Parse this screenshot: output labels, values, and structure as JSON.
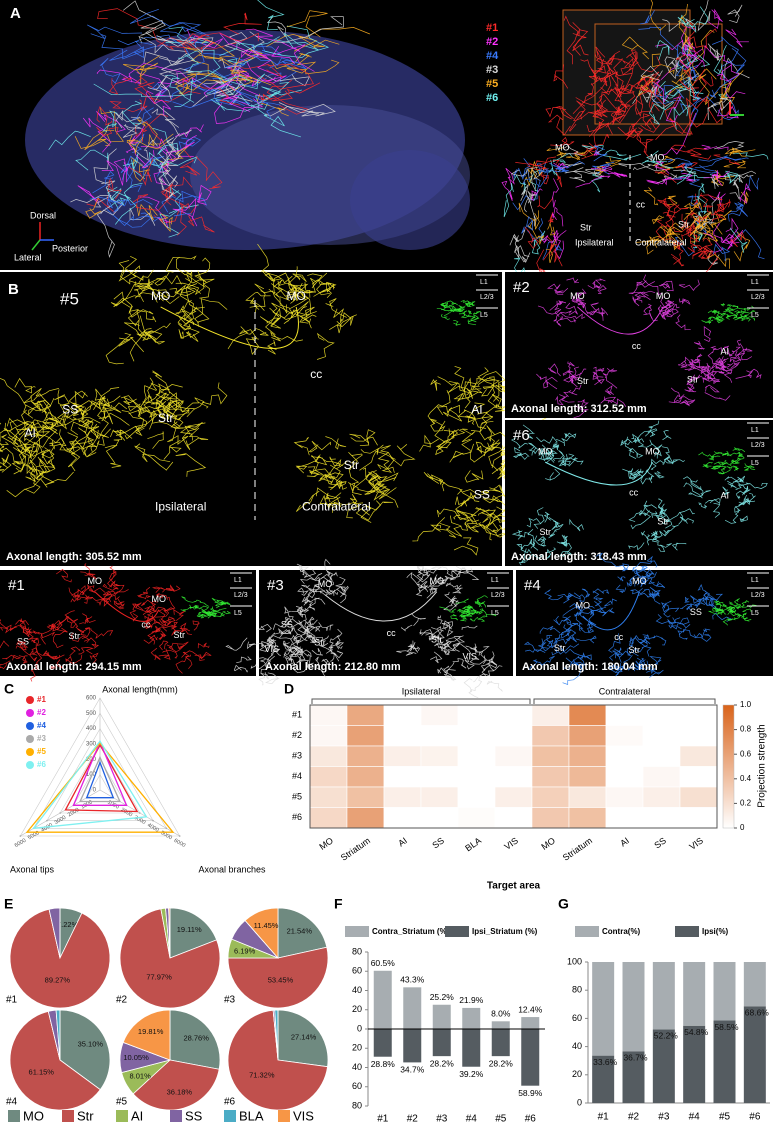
{
  "panel_a": {
    "label": "A",
    "legend": [
      {
        "name": "#1",
        "color": "#ff2a2a"
      },
      {
        "name": "#2",
        "color": "#ff33ff"
      },
      {
        "name": "#4",
        "color": "#3a7bff"
      },
      {
        "name": "#3",
        "color": "#d8d8d8"
      },
      {
        "name": "#5",
        "color": "#ffb020"
      },
      {
        "name": "#6",
        "color": "#70f0f0"
      }
    ],
    "axis_labels": [
      "Dorsal",
      "Posterior",
      "Lateral"
    ],
    "region_labels": [
      "MO",
      "MO",
      "cc",
      "Str",
      "Str",
      "Ipsilateral",
      "Contralateral"
    ]
  },
  "panel_b": {
    "label": "B",
    "layer_labels": [
      "L1",
      "L2/3",
      "L5"
    ],
    "neurons": [
      {
        "id": "#5",
        "color": "#f2e32a",
        "length_label": "Axonal length: 305.52 mm",
        "region_labels": [
          "MO",
          "MO",
          "cc",
          "SS",
          "AI",
          "Str",
          "Str",
          "AI",
          "SS",
          "Ipsilateral",
          "Contralateral"
        ]
      },
      {
        "id": "#2",
        "color": "#e040e0",
        "length_label": "Axonal length: 312.52 mm",
        "region_labels": [
          "MO",
          "MO",
          "cc",
          "AI",
          "Str",
          "Str"
        ]
      },
      {
        "id": "#6",
        "color": "#7fe8e8",
        "length_label": "Axonal length: 318.43 mm",
        "region_labels": [
          "MO",
          "MO",
          "cc",
          "AI",
          "Str",
          "Str"
        ]
      },
      {
        "id": "#1",
        "color": "#ee2222",
        "length_label": "Axonal length: 294.15 mm",
        "region_labels": [
          "MO",
          "MO",
          "cc",
          "SS",
          "Str",
          "Str"
        ]
      },
      {
        "id": "#3",
        "color": "#dddddd",
        "length_label": "Axonal length: 212.80 mm",
        "region_labels": [
          "MO",
          "MO",
          "cc",
          "SS",
          "Str",
          "Str",
          "VIS",
          "VIS"
        ]
      },
      {
        "id": "#4",
        "color": "#2f7fef",
        "length_label": "Axonal length: 180.04 mm",
        "region_labels": [
          "MO",
          "MO",
          "cc",
          "SS",
          "Str",
          "Str"
        ]
      }
    ]
  },
  "chart_data": [
    {
      "type": "radar",
      "panel": "C",
      "axes": [
        {
          "name": "Axonal length(mm)",
          "lim": [
            0,
            600
          ],
          "ticks": [
            0,
            100,
            200,
            300,
            400,
            500,
            600
          ]
        },
        {
          "name": "Axonal branches",
          "lim": [
            0,
            6000
          ],
          "ticks": [
            1000,
            2000,
            3000,
            4000,
            5000,
            6000
          ]
        },
        {
          "name": "Axonal tips",
          "lim": [
            0,
            6000
          ],
          "ticks": [
            1000,
            2000,
            3000,
            4000,
            5000,
            6000
          ]
        }
      ],
      "series": [
        {
          "name": "#1",
          "color": "#e8262a",
          "values": [
            294.15,
            2800,
            2600
          ]
        },
        {
          "name": "#2",
          "color": "#e020e0",
          "values": [
            312.52,
            2000,
            2000
          ]
        },
        {
          "name": "#4",
          "color": "#2060e0",
          "values": [
            180.04,
            1000,
            1000
          ]
        },
        {
          "name": "#3",
          "color": "#aaaaaa",
          "values": [
            212.8,
            1500,
            1500
          ]
        },
        {
          "name": "#5",
          "color": "#ffb000",
          "values": [
            305.52,
            5500,
            5500
          ]
        },
        {
          "name": "#6",
          "color": "#7ff0f0",
          "values": [
            318.43,
            3500,
            5000
          ]
        }
      ]
    },
    {
      "type": "heatmap",
      "panel": "D",
      "rows": [
        "#1",
        "#2",
        "#3",
        "#4",
        "#5",
        "#6"
      ],
      "groups": [
        {
          "name": "Ipsilateral",
          "columns": [
            "MO",
            "Striatum",
            "AI",
            "SS",
            "BLA",
            "VIS"
          ]
        },
        {
          "name": "Contralateral",
          "columns": [
            "MO",
            "Striatum",
            "AI",
            "SS",
            "VIS"
          ]
        }
      ],
      "values": [
        [
          0.05,
          0.55,
          0,
          0.05,
          0,
          0,
          0.1,
          0.75,
          0,
          0,
          0
        ],
        [
          0.05,
          0.6,
          0,
          0,
          0,
          0,
          0.35,
          0.6,
          0.03,
          0,
          0
        ],
        [
          0.15,
          0.5,
          0.1,
          0.08,
          0,
          0.05,
          0.4,
          0.5,
          0,
          0,
          0.15
        ],
        [
          0.25,
          0.5,
          0,
          0,
          0,
          0,
          0.35,
          0.45,
          0,
          0.05,
          0
        ],
        [
          0.2,
          0.4,
          0.1,
          0.1,
          0,
          0.1,
          0.3,
          0.15,
          0.05,
          0.1,
          0.2
        ],
        [
          0.25,
          0.6,
          0,
          0,
          0.02,
          0,
          0.35,
          0.4,
          0,
          0,
          0
        ]
      ],
      "xlabel": "Target area",
      "colors": [
        "#ffffff",
        "#d9631a"
      ],
      "colorbar": {
        "label": "Projection strength",
        "lim": [
          0,
          1
        ],
        "ticks": [
          0,
          0.2,
          0.4,
          0.6,
          0.8,
          {
            "value": 1,
            "label": "1.0"
          }
        ]
      }
    },
    {
      "type": "pie",
      "panel": "E",
      "categories": [
        "MO",
        "Str",
        "AI",
        "SS",
        "BLA",
        "VIS"
      ],
      "colors": [
        "#6f8a80",
        "#c0504d",
        "#9bbb59",
        "#8064a2",
        "#4bacc6",
        "#f79646"
      ],
      "pies": [
        {
          "name": "#1",
          "values": [
            7.22,
            89.27,
            0,
            3.51,
            0,
            0
          ],
          "value_labels": [
            "7.22%",
            "89.27%",
            null,
            null,
            null,
            null
          ]
        },
        {
          "name": "#2",
          "values": [
            19.11,
            77.97,
            1.5,
            1.0,
            0,
            0.42
          ],
          "value_labels": [
            "19.11%",
            "77.97%",
            null,
            null,
            null,
            null
          ]
        },
        {
          "name": "#3",
          "values": [
            21.54,
            53.45,
            6.19,
            7.37,
            0,
            11.45
          ],
          "value_labels": [
            "21.54%",
            "53.45%",
            "6.19%",
            null,
            null,
            "11.45%"
          ]
        },
        {
          "name": "#4",
          "values": [
            35.1,
            61.15,
            0,
            2.5,
            1.25,
            0
          ],
          "value_labels": [
            "35.10%",
            "61.15%",
            null,
            null,
            null,
            null
          ]
        },
        {
          "name": "#5",
          "values": [
            28.76,
            36.18,
            8.01,
            10.05,
            0,
            19.81
          ],
          "value_labels": [
            "28.76%",
            "36.18%",
            "8.01%",
            "10.05%",
            null,
            "19.81%"
          ]
        },
        {
          "name": "#6",
          "values": [
            27.14,
            71.32,
            0,
            0.5,
            1.04,
            0
          ],
          "value_labels": [
            "27.14%",
            "71.32%",
            null,
            null,
            null,
            null
          ]
        }
      ]
    },
    {
      "type": "bar",
      "panel": "F",
      "categories": [
        "#1",
        "#2",
        "#3",
        "#4",
        "#5",
        "#6"
      ],
      "ylim": [
        -80,
        80
      ],
      "yticks": [
        {
          "value": -80,
          "label": "80"
        },
        {
          "value": -60,
          "label": "60"
        },
        {
          "value": -40,
          "label": "40"
        },
        {
          "value": -20,
          "label": "20"
        },
        0,
        20,
        40,
        60,
        80
      ],
      "series": [
        {
          "name": "Contra_Striatum (%)",
          "color": "#a7adb1",
          "values": [
            60.5,
            43.3,
            25.2,
            21.9,
            8.0,
            12.4
          ],
          "value_labels": [
            "60.5%",
            "43.3%",
            "25.2%",
            "21.9%",
            "8.0%",
            "12.4%"
          ]
        },
        {
          "name": "Ipsi_Striatum (%)",
          "color": "#555c61",
          "values": [
            -28.8,
            -34.7,
            -28.2,
            -39.2,
            -28.2,
            -58.9
          ],
          "value_labels": [
            "28.8%",
            "34.7%",
            "28.2%",
            "39.2%",
            "28.2%",
            "58.9%"
          ]
        }
      ]
    },
    {
      "type": "stacked_bar",
      "panel": "G",
      "categories": [
        "#1",
        "#2",
        "#3",
        "#4",
        "#5",
        "#6"
      ],
      "ylim": [
        0,
        100
      ],
      "yticks": [
        0,
        20,
        40,
        60,
        80,
        100
      ],
      "series": [
        {
          "name": "Contra(%)",
          "color": "#a7adb1",
          "values": [
            66.4,
            63.3,
            47.8,
            45.2,
            41.5,
            31.4
          ]
        },
        {
          "name": "Ipsi(%)",
          "color": "#555c61",
          "values": [
            33.6,
            36.7,
            52.2,
            54.8,
            58.5,
            68.6
          ],
          "value_labels": [
            "33.6%",
            "36.7%",
            "52.2%",
            "54.8%",
            "58.5%",
            "68.6%"
          ]
        }
      ]
    }
  ]
}
